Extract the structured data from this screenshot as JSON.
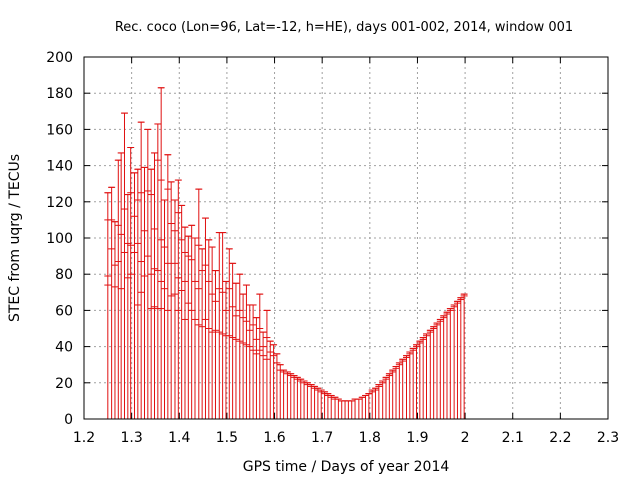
{
  "chart_data": {
    "type": "scatter",
    "title": "Rec. coco (Lon=96, Lat=-12, h=HE), days 001-002, 2014, window 001",
    "xlabel": "GPS time / Days of year 2014",
    "ylabel": "STEC from uqrg / TECUs",
    "xlim": [
      1.2,
      2.3
    ],
    "ylim": [
      0,
      200
    ],
    "xticks": [
      "1.2",
      "1.3",
      "1.4",
      "1.5",
      "1.6",
      "1.7",
      "1.8",
      "1.9",
      "2",
      "2.1",
      "2.2",
      "2.3"
    ],
    "yticks": [
      "0",
      "20",
      "40",
      "60",
      "80",
      "100",
      "120",
      "140",
      "160",
      "180",
      "200"
    ],
    "grid": true,
    "error_bars": "vertical, lower end at 0",
    "color": "#e01010",
    "series": [
      {
        "points": [
          [
            1.25,
            125
          ],
          [
            1.25,
            110
          ],
          [
            1.25,
            79
          ],
          [
            1.25,
            74
          ],
          [
            1.258,
            128
          ],
          [
            1.258,
            110
          ],
          [
            1.258,
            94
          ],
          [
            1.265,
            109
          ],
          [
            1.265,
            85
          ],
          [
            1.265,
            73
          ],
          [
            1.272,
            143
          ],
          [
            1.272,
            107
          ],
          [
            1.272,
            87
          ],
          [
            1.278,
            147
          ],
          [
            1.278,
            102
          ],
          [
            1.278,
            72
          ],
          [
            1.285,
            169
          ],
          [
            1.285,
            116
          ],
          [
            1.285,
            92
          ],
          [
            1.292,
            124
          ],
          [
            1.292,
            97
          ],
          [
            1.292,
            78
          ],
          [
            1.298,
            150
          ],
          [
            1.298,
            125
          ],
          [
            1.298,
            96
          ],
          [
            1.298,
            80
          ],
          [
            1.306,
            136
          ],
          [
            1.306,
            112
          ],
          [
            1.306,
            92
          ],
          [
            1.313,
            138
          ],
          [
            1.313,
            121
          ],
          [
            1.313,
            97
          ],
          [
            1.313,
            63
          ],
          [
            1.32,
            164
          ],
          [
            1.32,
            125
          ],
          [
            1.32,
            87
          ],
          [
            1.32,
            70
          ],
          [
            1.327,
            139
          ],
          [
            1.327,
            104
          ],
          [
            1.327,
            79
          ],
          [
            1.334,
            160
          ],
          [
            1.334,
            126
          ],
          [
            1.334,
            90
          ],
          [
            1.341,
            138
          ],
          [
            1.341,
            124
          ],
          [
            1.341,
            80
          ],
          [
            1.341,
            61
          ],
          [
            1.348,
            147
          ],
          [
            1.348,
            105
          ],
          [
            1.348,
            83
          ],
          [
            1.348,
            62
          ],
          [
            1.355,
            163
          ],
          [
            1.355,
            143
          ],
          [
            1.355,
            82
          ],
          [
            1.355,
            61
          ],
          [
            1.362,
            183
          ],
          [
            1.362,
            132
          ],
          [
            1.362,
            99
          ],
          [
            1.362,
            76
          ],
          [
            1.362,
            61
          ],
          [
            1.369,
            121
          ],
          [
            1.369,
            95
          ],
          [
            1.369,
            72
          ],
          [
            1.376,
            146
          ],
          [
            1.376,
            127
          ],
          [
            1.376,
            86
          ],
          [
            1.376,
            60
          ],
          [
            1.383,
            131
          ],
          [
            1.383,
            108
          ],
          [
            1.383,
            68
          ],
          [
            1.391,
            121
          ],
          [
            1.391,
            104
          ],
          [
            1.391,
            86
          ],
          [
            1.391,
            69
          ],
          [
            1.398,
            132
          ],
          [
            1.398,
            114
          ],
          [
            1.398,
            78
          ],
          [
            1.398,
            60
          ],
          [
            1.405,
            118
          ],
          [
            1.405,
            99
          ],
          [
            1.405,
            71
          ],
          [
            1.412,
            106
          ],
          [
            1.412,
            92
          ],
          [
            1.412,
            76
          ],
          [
            1.412,
            55
          ],
          [
            1.419,
            101
          ],
          [
            1.419,
            90
          ],
          [
            1.419,
            64
          ],
          [
            1.426,
            107
          ],
          [
            1.426,
            88
          ],
          [
            1.426,
            60
          ],
          [
            1.433,
            100
          ],
          [
            1.433,
            76
          ],
          [
            1.433,
            55
          ],
          [
            1.441,
            127
          ],
          [
            1.441,
            96
          ],
          [
            1.441,
            72
          ],
          [
            1.441,
            52
          ],
          [
            1.448,
            94
          ],
          [
            1.448,
            82
          ],
          [
            1.448,
            51
          ],
          [
            1.455,
            111
          ],
          [
            1.455,
            85
          ],
          [
            1.455,
            55
          ],
          [
            1.462,
            99
          ],
          [
            1.462,
            76
          ],
          [
            1.462,
            50
          ],
          [
            1.469,
            95
          ],
          [
            1.469,
            69
          ],
          [
            1.469,
            48
          ],
          [
            1.476,
            82
          ],
          [
            1.476,
            65
          ],
          [
            1.476,
            49
          ],
          [
            1.484,
            103
          ],
          [
            1.484,
            72
          ],
          [
            1.484,
            48
          ],
          [
            1.491,
            103
          ],
          [
            1.491,
            70
          ],
          [
            1.491,
            47
          ],
          [
            1.498,
            76
          ],
          [
            1.498,
            60
          ],
          [
            1.498,
            46
          ],
          [
            1.505,
            94
          ],
          [
            1.505,
            72
          ],
          [
            1.505,
            46
          ],
          [
            1.512,
            86
          ],
          [
            1.512,
            62
          ],
          [
            1.512,
            45
          ],
          [
            1.519,
            75
          ],
          [
            1.519,
            57
          ],
          [
            1.519,
            44
          ],
          [
            1.527,
            80
          ],
          [
            1.527,
            60
          ],
          [
            1.527,
            43
          ],
          [
            1.534,
            69
          ],
          [
            1.534,
            56
          ],
          [
            1.534,
            42
          ],
          [
            1.541,
            74
          ],
          [
            1.541,
            54
          ],
          [
            1.541,
            41
          ],
          [
            1.548,
            63
          ],
          [
            1.548,
            49
          ],
          [
            1.548,
            40
          ],
          [
            1.555,
            63
          ],
          [
            1.555,
            52
          ],
          [
            1.555,
            38
          ],
          [
            1.562,
            56
          ],
          [
            1.562,
            44
          ],
          [
            1.562,
            36
          ],
          [
            1.569,
            69
          ],
          [
            1.569,
            50
          ],
          [
            1.569,
            38
          ],
          [
            1.576,
            48
          ],
          [
            1.576,
            40
          ],
          [
            1.576,
            35
          ],
          [
            1.584,
            60
          ],
          [
            1.584,
            45
          ],
          [
            1.584,
            33
          ],
          [
            1.591,
            43
          ],
          [
            1.591,
            37
          ],
          [
            1.598,
            41
          ],
          [
            1.598,
            35
          ],
          [
            1.605,
            36
          ],
          [
            1.605,
            31
          ],
          [
            1.612,
            30
          ],
          [
            1.612,
            27
          ],
          [
            1.619,
            27
          ],
          [
            1.619,
            26
          ],
          [
            1.627,
            26
          ],
          [
            1.627,
            25
          ],
          [
            1.634,
            25
          ],
          [
            1.634,
            24
          ],
          [
            1.641,
            24
          ],
          [
            1.641,
            23
          ],
          [
            1.648,
            23
          ],
          [
            1.648,
            22
          ],
          [
            1.655,
            22
          ],
          [
            1.655,
            21
          ],
          [
            1.662,
            21
          ],
          [
            1.662,
            20
          ],
          [
            1.669,
            20
          ],
          [
            1.669,
            19
          ],
          [
            1.677,
            19
          ],
          [
            1.677,
            18
          ],
          [
            1.684,
            18
          ],
          [
            1.684,
            17
          ],
          [
            1.691,
            17
          ],
          [
            1.691,
            16
          ],
          [
            1.698,
            16
          ],
          [
            1.698,
            15
          ],
          [
            1.705,
            15
          ],
          [
            1.705,
            14
          ],
          [
            1.712,
            14
          ],
          [
            1.712,
            13
          ],
          [
            1.719,
            13
          ],
          [
            1.719,
            12
          ],
          [
            1.727,
            12
          ],
          [
            1.727,
            11
          ],
          [
            1.734,
            11
          ],
          [
            1.741,
            10
          ],
          [
            1.748,
            10
          ],
          [
            1.755,
            10
          ],
          [
            1.762,
            10
          ],
          [
            1.769,
            11
          ],
          [
            1.777,
            11
          ],
          [
            1.784,
            12
          ],
          [
            1.791,
            13
          ],
          [
            1.798,
            14
          ],
          [
            1.798,
            14
          ],
          [
            1.805,
            15
          ],
          [
            1.805,
            16
          ],
          [
            1.812,
            16
          ],
          [
            1.812,
            17
          ],
          [
            1.819,
            18
          ],
          [
            1.819,
            19
          ],
          [
            1.827,
            20
          ],
          [
            1.827,
            21
          ],
          [
            1.834,
            22
          ],
          [
            1.834,
            23
          ],
          [
            1.841,
            24
          ],
          [
            1.841,
            25
          ],
          [
            1.848,
            26
          ],
          [
            1.848,
            27
          ],
          [
            1.855,
            28
          ],
          [
            1.855,
            29
          ],
          [
            1.862,
            30
          ],
          [
            1.862,
            31
          ],
          [
            1.869,
            32
          ],
          [
            1.869,
            33
          ],
          [
            1.877,
            34
          ],
          [
            1.877,
            35
          ],
          [
            1.884,
            36
          ],
          [
            1.884,
            37
          ],
          [
            1.891,
            38
          ],
          [
            1.891,
            39
          ],
          [
            1.898,
            40
          ],
          [
            1.898,
            41
          ],
          [
            1.905,
            42
          ],
          [
            1.905,
            43
          ],
          [
            1.912,
            44
          ],
          [
            1.912,
            45
          ],
          [
            1.919,
            46
          ],
          [
            1.919,
            47
          ],
          [
            1.927,
            48
          ],
          [
            1.927,
            49
          ],
          [
            1.934,
            50
          ],
          [
            1.934,
            51
          ],
          [
            1.941,
            52
          ],
          [
            1.941,
            53
          ],
          [
            1.948,
            54
          ],
          [
            1.948,
            55
          ],
          [
            1.955,
            56
          ],
          [
            1.955,
            57
          ],
          [
            1.962,
            58
          ],
          [
            1.962,
            59
          ],
          [
            1.969,
            60
          ],
          [
            1.969,
            61
          ],
          [
            1.977,
            62
          ],
          [
            1.977,
            63
          ],
          [
            1.984,
            64
          ],
          [
            1.984,
            65
          ],
          [
            1.991,
            66
          ],
          [
            1.991,
            67
          ],
          [
            1.998,
            68
          ],
          [
            1.998,
            69
          ]
        ]
      }
    ]
  }
}
